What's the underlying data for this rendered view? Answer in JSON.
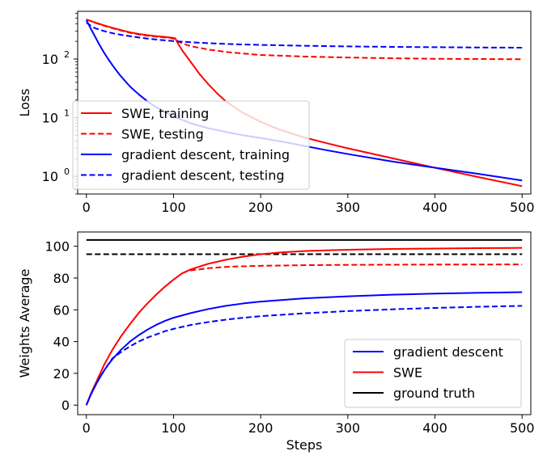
{
  "chart_data": [
    {
      "type": "line",
      "title": "",
      "xlabel": "",
      "ylabel": "Loss",
      "yscale": "log",
      "xlim": [
        -10,
        510
      ],
      "ylim": [
        0.5,
        650
      ],
      "x_ticks": [
        0,
        100,
        200,
        300,
        400,
        500
      ],
      "x_tick_labels": [
        "0",
        "100",
        "200",
        "300",
        "400",
        "500"
      ],
      "y_ticks": [
        1,
        10,
        100
      ],
      "y_tick_labels": [
        "10",
        "10",
        "10"
      ],
      "y_tick_exponents": [
        "0",
        "1",
        "2"
      ],
      "grid": false,
      "legend_position": "lower-left",
      "series": [
        {
          "name": "SWE, training",
          "color": "#ff0000",
          "style": "solid",
          "points": [
            [
              0,
              470
            ],
            [
              10,
              420
            ],
            [
              20,
              375
            ],
            [
              30,
              340
            ],
            [
              40,
              310
            ],
            [
              50,
              285
            ],
            [
              60,
              268
            ],
            [
              70,
              255
            ],
            [
              80,
              245
            ],
            [
              90,
              238
            ],
            [
              97,
              232
            ],
            [
              100,
              228
            ],
            [
              102,
              225
            ],
            [
              105,
              185
            ],
            [
              110,
              140
            ],
            [
              120,
              88
            ],
            [
              130,
              55
            ],
            [
              140,
              37
            ],
            [
              150,
              26
            ],
            [
              160,
              19
            ],
            [
              170,
              15
            ],
            [
              180,
              12
            ],
            [
              200,
              8.5
            ],
            [
              220,
              6.4
            ],
            [
              250,
              4.6
            ],
            [
              275,
              3.7
            ],
            [
              300,
              3.0
            ],
            [
              350,
              2.05
            ],
            [
              400,
              1.4
            ],
            [
              450,
              0.97
            ],
            [
              500,
              0.68
            ]
          ]
        },
        {
          "name": "SWE, testing",
          "color": "#ff0000",
          "style": "dashed",
          "points": [
            [
              0,
              470
            ],
            [
              10,
              415
            ],
            [
              20,
              370
            ],
            [
              30,
              335
            ],
            [
              40,
              305
            ],
            [
              50,
              280
            ],
            [
              60,
              262
            ],
            [
              70,
              250
            ],
            [
              80,
              240
            ],
            [
              90,
              233
            ],
            [
              97,
              228
            ],
            [
              100,
              222
            ],
            [
              105,
              200
            ],
            [
              110,
              185
            ],
            [
              120,
              165
            ],
            [
              140,
              145
            ],
            [
              160,
              132
            ],
            [
              180,
              124
            ],
            [
              200,
              117
            ],
            [
              250,
              110
            ],
            [
              300,
              106
            ],
            [
              350,
              103
            ],
            [
              400,
              101
            ],
            [
              450,
              100
            ],
            [
              500,
              99
            ]
          ]
        },
        {
          "name": "gradient descent, training",
          "color": "#0000ff",
          "style": "solid",
          "points": [
            [
              0,
              460
            ],
            [
              5,
              330
            ],
            [
              10,
              240
            ],
            [
              15,
              175
            ],
            [
              20,
              130
            ],
            [
              25,
              100
            ],
            [
              30,
              78
            ],
            [
              35,
              62
            ],
            [
              40,
              50
            ],
            [
              50,
              34
            ],
            [
              60,
              25
            ],
            [
              70,
              19
            ],
            [
              80,
              15
            ],
            [
              90,
              12.5
            ],
            [
              100,
              10.5
            ],
            [
              120,
              8.0
            ],
            [
              140,
              6.6
            ],
            [
              160,
              5.7
            ],
            [
              180,
              5.0
            ],
            [
              200,
              4.5
            ],
            [
              225,
              3.9
            ],
            [
              250,
              3.3
            ],
            [
              275,
              2.8
            ],
            [
              300,
              2.4
            ],
            [
              350,
              1.8
            ],
            [
              400,
              1.4
            ],
            [
              450,
              1.1
            ],
            [
              500,
              0.85
            ]
          ]
        },
        {
          "name": "gradient descent, testing",
          "color": "#0000ff",
          "style": "dashed",
          "points": [
            [
              0,
              420
            ],
            [
              5,
              370
            ],
            [
              10,
              335
            ],
            [
              20,
              300
            ],
            [
              30,
              275
            ],
            [
              40,
              258
            ],
            [
              50,
              245
            ],
            [
              60,
              233
            ],
            [
              70,
              223
            ],
            [
              80,
              215
            ],
            [
              90,
              208
            ],
            [
              100,
              202
            ],
            [
              120,
              193
            ],
            [
              140,
              186
            ],
            [
              160,
              181
            ],
            [
              180,
              177
            ],
            [
              200,
              174
            ],
            [
              250,
              168
            ],
            [
              300,
              164
            ],
            [
              350,
              161
            ],
            [
              400,
              159
            ],
            [
              450,
              157
            ],
            [
              500,
              156
            ]
          ]
        }
      ]
    },
    {
      "type": "line",
      "title": "",
      "xlabel": "Steps",
      "ylabel": "Weights Average",
      "xlim": [
        -10,
        510
      ],
      "ylim": [
        -6,
        109
      ],
      "x_ticks": [
        0,
        100,
        200,
        300,
        400,
        500
      ],
      "x_tick_labels": [
        "0",
        "100",
        "200",
        "300",
        "400",
        "500"
      ],
      "y_ticks": [
        0,
        20,
        40,
        60,
        80,
        100
      ],
      "y_tick_labels": [
        "0",
        "20",
        "40",
        "60",
        "80",
        "100"
      ],
      "grid": false,
      "legend_position": "lower-right",
      "legend": [
        {
          "name": "gradient descent",
          "color": "#0000ff"
        },
        {
          "name": "SWE",
          "color": "#ff0000"
        },
        {
          "name": "ground truth",
          "color": "#000000"
        }
      ],
      "series": [
        {
          "legend_name": "ground truth",
          "color": "#000000",
          "style": "solid",
          "points": [
            [
              0,
              104
            ],
            [
              500,
              104
            ]
          ]
        },
        {
          "legend_name": "",
          "color": "#000000",
          "style": "dashed",
          "points": [
            [
              0,
              95
            ],
            [
              500,
              95
            ]
          ]
        },
        {
          "legend_name": "SWE",
          "color": "#ff0000",
          "style": "solid",
          "points": [
            [
              0,
              0
            ],
            [
              5,
              7
            ],
            [
              10,
              13
            ],
            [
              15,
              19
            ],
            [
              20,
              25
            ],
            [
              25,
              30
            ],
            [
              30,
              35
            ],
            [
              40,
              43.5
            ],
            [
              50,
              51
            ],
            [
              60,
              58
            ],
            [
              70,
              64
            ],
            [
              80,
              69.5
            ],
            [
              90,
              74.5
            ],
            [
              100,
              79
            ],
            [
              110,
              83
            ],
            [
              120,
              85.5
            ],
            [
              140,
              89
            ],
            [
              160,
              91.5
            ],
            [
              180,
              93.5
            ],
            [
              200,
              95
            ],
            [
              225,
              96.2
            ],
            [
              250,
              97
            ],
            [
              300,
              97.8
            ],
            [
              350,
              98.3
            ],
            [
              400,
              98.6
            ],
            [
              450,
              98.8
            ],
            [
              500,
              99
            ]
          ]
        },
        {
          "legend_name": "",
          "color": "#ff0000",
          "style": "dashed",
          "points": [
            [
              110,
              83
            ],
            [
              115,
              84.2
            ],
            [
              120,
              84.8
            ],
            [
              140,
              86.2
            ],
            [
              160,
              87
            ],
            [
              180,
              87.4
            ],
            [
              200,
              87.7
            ],
            [
              250,
              88.1
            ],
            [
              300,
              88.3
            ],
            [
              350,
              88.4
            ],
            [
              400,
              88.5
            ],
            [
              450,
              88.5
            ],
            [
              500,
              88.6
            ]
          ]
        },
        {
          "legend_name": "gradient descent",
          "color": "#0000ff",
          "style": "solid",
          "points": [
            [
              0,
              0
            ],
            [
              5,
              6.5
            ],
            [
              10,
              12
            ],
            [
              15,
              17
            ],
            [
              20,
              21.5
            ],
            [
              25,
              25.5
            ],
            [
              30,
              29
            ],
            [
              40,
              35
            ],
            [
              50,
              40
            ],
            [
              60,
              44
            ],
            [
              70,
              47.5
            ],
            [
              80,
              50.5
            ],
            [
              90,
              53
            ],
            [
              100,
              55
            ],
            [
              120,
              58
            ],
            [
              140,
              60.5
            ],
            [
              160,
              62.5
            ],
            [
              180,
              64
            ],
            [
              200,
              65.2
            ],
            [
              250,
              67.2
            ],
            [
              300,
              68.5
            ],
            [
              350,
              69.5
            ],
            [
              400,
              70.2
            ],
            [
              450,
              70.7
            ],
            [
              500,
              71.1
            ]
          ]
        },
        {
          "legend_name": "",
          "color": "#0000ff",
          "style": "dashed",
          "points": [
            [
              0,
              0
            ],
            [
              5,
              6.5
            ],
            [
              10,
              12
            ],
            [
              15,
              17
            ],
            [
              20,
              21.5
            ],
            [
              25,
              25.5
            ],
            [
              30,
              29.5
            ],
            [
              40,
              33.5
            ],
            [
              50,
              37
            ],
            [
              60,
              40
            ],
            [
              70,
              42.5
            ],
            [
              80,
              44.5
            ],
            [
              90,
              46.5
            ],
            [
              100,
              48
            ],
            [
              120,
              50.5
            ],
            [
              140,
              52.3
            ],
            [
              160,
              53.8
            ],
            [
              180,
              55
            ],
            [
              200,
              56
            ],
            [
              250,
              57.8
            ],
            [
              300,
              59.2
            ],
            [
              350,
              60.3
            ],
            [
              400,
              61.2
            ],
            [
              450,
              61.9
            ],
            [
              500,
              62.5
            ]
          ]
        }
      ]
    }
  ]
}
